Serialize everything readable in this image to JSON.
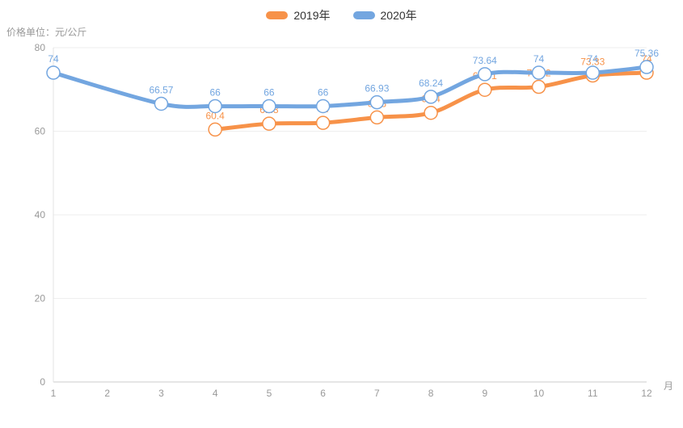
{
  "chart_data": {
    "type": "line",
    "title": "",
    "y_axis_title": "价格单位：元/公斤",
    "x_axis_name": "月",
    "categories": [
      "1",
      "2",
      "3",
      "4",
      "5",
      "6",
      "7",
      "8",
      "9",
      "10",
      "11",
      "12"
    ],
    "y_ticks": [
      0,
      20,
      40,
      60,
      80
    ],
    "ylim": [
      0,
      80
    ],
    "grid": true,
    "smooth": true,
    "legend_position": "top-center",
    "series": [
      {
        "name": "2019年",
        "color": "#f79249",
        "values": [
          null,
          null,
          null,
          60.4,
          61.8,
          62,
          63.3,
          64.4,
          69.91,
          70.62,
          73.33,
          74
        ]
      },
      {
        "name": "2020年",
        "color": "#73a6e0",
        "values": [
          74,
          null,
          66.57,
          66,
          66,
          66,
          66.93,
          68.24,
          73.64,
          74,
          74,
          75.36
        ]
      }
    ]
  },
  "legend": {
    "items": [
      {
        "label": "2019年",
        "color": "#f79249"
      },
      {
        "label": "2020年",
        "color": "#73a6e0"
      }
    ]
  },
  "colors": {
    "grid_line": "#eeeeee",
    "axis_line": "#cccccc",
    "y_axis_line": "#e3e3e3",
    "tick_label": "#999999",
    "legend_text": "#333333",
    "background": "#ffffff"
  }
}
